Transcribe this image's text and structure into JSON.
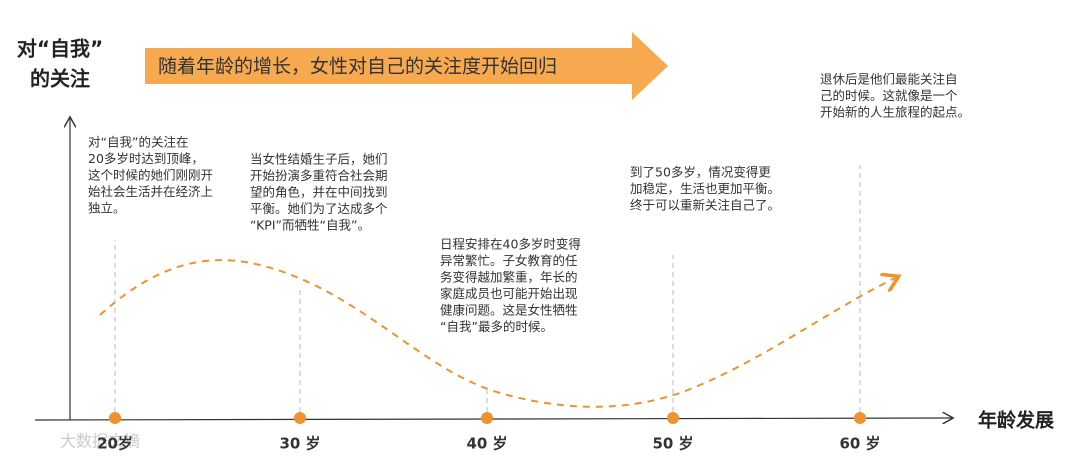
{
  "y_axis_label": [
    "对“自我”",
    "的关注"
  ],
  "banner": "随着年龄的增长，女性对自己的关注度开始回归",
  "x_axis_label": "年龄发展",
  "ages": [
    "20岁",
    "30 岁",
    "40 岁",
    "50 岁",
    "60 岁"
  ],
  "annotations": [
    {
      "lines": [
        "对“自我”的关注在",
        "20多岁时达到顶峰，",
        "这个时候的她们刚刚开",
        "始社会生活并在经济上",
        "独立。"
      ]
    },
    {
      "lines": [
        "当女性结婚生子后，她们",
        "开始扮演多重符合社会期",
        "望的角色，并在中间找到",
        "平衡。她们为了达成多个",
        "“KPI”而牺牲“自我”。"
      ]
    },
    {
      "lines": [
        "日程安排在40多岁时变得",
        "异常繁忙。子女教育的任",
        "务变得越加繁重，年长的",
        "家庭成员也可能开始出现",
        "健康问题。这是女性牺牲",
        "“自我”最多的时候。"
      ]
    },
    {
      "lines": [
        "到了50多岁，情况变得更",
        "加稳定，生活也更加平衡。",
        "终于可以重新关注自己了。"
      ]
    },
    {
      "lines": [
        "退休后是他们最能关注自",
        "己的时候。这就像是一个",
        "开始新的人生旅程的起点。"
      ]
    }
  ],
  "watermark": "大数据文摘"
}
